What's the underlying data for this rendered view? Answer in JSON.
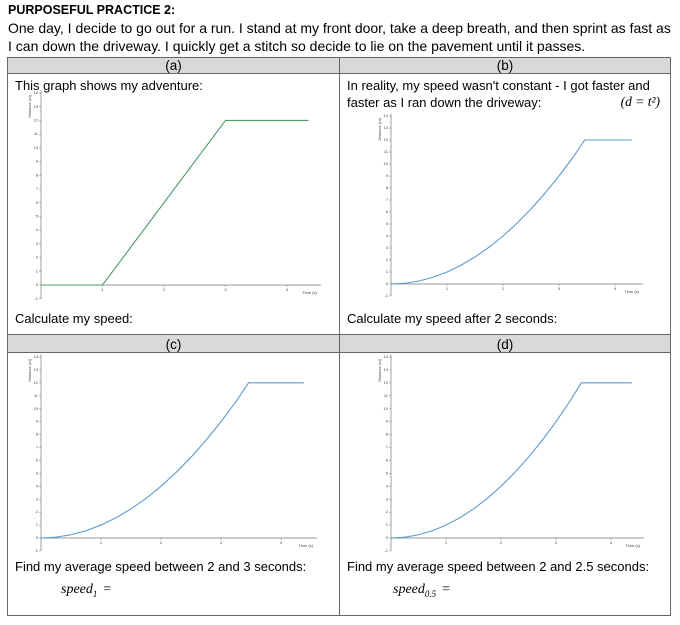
{
  "title": "PURPOSEFUL PRACTICE 2:",
  "intro": "One day, I decide to go out for a run. I stand at my front door, take a deep breath, and then sprint as fast as I can down the driveway. I quickly get a stitch so decide to lie on the pavement until it passes.",
  "panels": [
    {
      "label": "(a)",
      "text": "This graph shows my adventure:",
      "question": "Calculate my speed:",
      "graph": {
        "x_label": "Time (s)",
        "y_label": "Distance (m)",
        "xlim": [
          0,
          4.55
        ],
        "ylim": [
          -1,
          14.2
        ],
        "xticks": [
          1,
          2,
          3,
          4
        ],
        "yticks": [
          -1,
          0,
          1,
          2,
          3,
          4,
          5,
          6,
          7,
          8,
          9,
          10,
          11,
          12,
          13,
          14
        ],
        "line": {
          "color": "#4e9a6a",
          "x": [
            0,
            1,
            3,
            4.35
          ],
          "y": [
            0,
            0,
            12,
            12
          ]
        }
      }
    },
    {
      "label": "(b)",
      "text": "In reality, my speed wasn't constant - I got faster and faster as I ran down the driveway:",
      "formula": "(d = t²)",
      "question": "Calculate my speed after 2 seconds:",
      "graph": {
        "x_label": "Time (s)",
        "y_label": "Distance (m)",
        "xlim": [
          0,
          4.5
        ],
        "ylim": [
          -1,
          14.2
        ],
        "xticks": [
          1,
          2,
          3,
          4
        ],
        "yticks": [
          -1,
          0,
          1,
          2,
          3,
          4,
          5,
          6,
          7,
          8,
          9,
          10,
          11,
          12,
          13,
          14
        ],
        "line": {
          "color": "#5b9bd5",
          "x": [
            0,
            0.25,
            0.5,
            0.75,
            1,
            1.25,
            1.5,
            1.75,
            2,
            2.25,
            2.5,
            2.75,
            3,
            3.25,
            3.46,
            4.3
          ],
          "y": [
            0,
            0.0625,
            0.25,
            0.5625,
            1,
            1.5625,
            2.25,
            3.0625,
            4,
            5.0625,
            6.25,
            7.5625,
            9,
            10.5625,
            12,
            12
          ]
        }
      }
    },
    {
      "label": "(c)",
      "question": "Find my average speed between 2 and 3 seconds:",
      "answer": {
        "base": "speed",
        "sub": "1",
        "tail": "="
      },
      "graph": {
        "x_label": "Time (s)",
        "y_label": "Distance (m)",
        "xlim": [
          0,
          4.6
        ],
        "ylim": [
          -1,
          14.2
        ],
        "xticks": [
          1,
          2,
          3,
          4
        ],
        "yticks": [
          -1,
          0,
          1,
          2,
          3,
          4,
          5,
          6,
          7,
          8,
          9,
          10,
          11,
          12,
          13,
          14
        ],
        "line": {
          "color": "#5b9bd5",
          "x": [
            0,
            0.25,
            0.5,
            0.75,
            1,
            1.25,
            1.5,
            1.75,
            2,
            2.25,
            2.5,
            2.75,
            3,
            3.25,
            3.46,
            4.38
          ],
          "y": [
            0,
            0.0625,
            0.25,
            0.5625,
            1,
            1.5625,
            2.25,
            3.0625,
            4,
            5.0625,
            6.25,
            7.5625,
            9,
            10.5625,
            12,
            12
          ]
        }
      }
    },
    {
      "label": "(d)",
      "question": "Find my average speed between 2 and 2.5 seconds:",
      "answer": {
        "base": "speed",
        "sub": "0.5",
        "tail": "="
      },
      "graph": {
        "x_label": "Time (s)",
        "y_label": "Distance (m)",
        "xlim": [
          0,
          4.6
        ],
        "ylim": [
          -1,
          14.2
        ],
        "xticks": [
          1,
          2,
          3,
          4
        ],
        "yticks": [
          -1,
          0,
          1,
          2,
          3,
          4,
          5,
          6,
          7,
          8,
          9,
          10,
          11,
          12,
          13,
          14
        ],
        "line": {
          "color": "#5b9bd5",
          "x": [
            0,
            0.25,
            0.5,
            0.75,
            1,
            1.25,
            1.5,
            1.75,
            2,
            2.25,
            2.5,
            2.75,
            3,
            3.25,
            3.46,
            4.38
          ],
          "y": [
            0,
            0.0625,
            0.25,
            0.5625,
            1,
            1.5625,
            2.25,
            3.0625,
            4,
            5.0625,
            6.25,
            7.5625,
            9,
            10.5625,
            12,
            12
          ]
        }
      }
    }
  ]
}
